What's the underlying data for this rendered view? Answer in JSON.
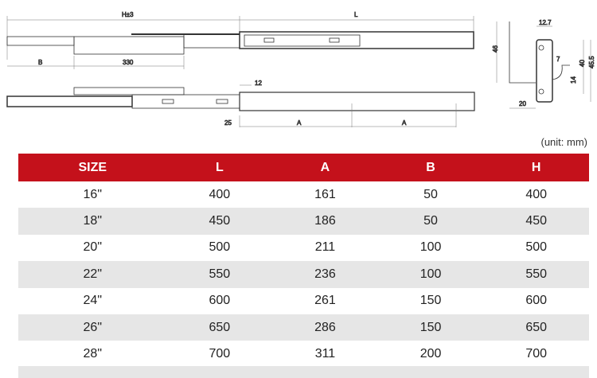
{
  "drawing": {
    "dims": {
      "h": "H±3",
      "l": "L",
      "b": "B",
      "d330": "330",
      "d12": "12",
      "d25": "25",
      "a1": "A",
      "a2": "A",
      "p46": "46",
      "p127": "12.7",
      "p7": "7",
      "p40": "40",
      "p455": "45.5",
      "p14": "14",
      "p20": "20"
    }
  },
  "unit_note": "(unit: mm)",
  "table": {
    "headers": [
      "SIZE",
      "L",
      "A",
      "B",
      "H"
    ],
    "rows": [
      [
        "16\"",
        "400",
        "161",
        "50",
        "400"
      ],
      [
        "18\"",
        "450",
        "186",
        "50",
        "450"
      ],
      [
        "20\"",
        "500",
        "211",
        "100",
        "500"
      ],
      [
        "22\"",
        "550",
        "236",
        "100",
        "550"
      ],
      [
        "24\"",
        "600",
        "261",
        "150",
        "600"
      ],
      [
        "26\"",
        "650",
        "286",
        "150",
        "650"
      ],
      [
        "28\"",
        "700",
        "311",
        "200",
        "700"
      ]
    ],
    "header_color": "#c4111b",
    "alt_row_color": "#e6e6e6"
  }
}
